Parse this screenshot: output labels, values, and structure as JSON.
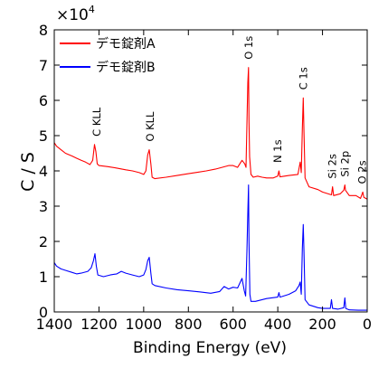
{
  "chart_data": {
    "type": "line",
    "xlabel": "Binding Energy (eV)",
    "ylabel": "C / S",
    "multiplier": {
      "base": "×10",
      "exp": "4"
    },
    "x_reversed": true,
    "xlim": [
      1400,
      0
    ],
    "ylim": [
      0,
      8
    ],
    "x_ticks": [
      1400,
      1200,
      1000,
      800,
      600,
      400,
      200,
      0
    ],
    "y_ticks": [
      0,
      1,
      2,
      3,
      4,
      5,
      6,
      7,
      8
    ],
    "grid": false,
    "legend_position": "top-left",
    "series": [
      {
        "name": "デモ錠剤A",
        "color": "#ff0000",
        "points": [
          [
            1400,
            4.8
          ],
          [
            1390,
            4.7
          ],
          [
            1370,
            4.6
          ],
          [
            1350,
            4.5
          ],
          [
            1320,
            4.42
          ],
          [
            1300,
            4.36
          ],
          [
            1280,
            4.3
          ],
          [
            1260,
            4.25
          ],
          [
            1240,
            4.18
          ],
          [
            1228,
            4.3
          ],
          [
            1220,
            4.75
          ],
          [
            1214,
            4.55
          ],
          [
            1208,
            4.2
          ],
          [
            1200,
            4.15
          ],
          [
            1160,
            4.12
          ],
          [
            1120,
            4.08
          ],
          [
            1080,
            4.03
          ],
          [
            1050,
            4.0
          ],
          [
            1020,
            3.95
          ],
          [
            1000,
            3.9
          ],
          [
            990,
            4.0
          ],
          [
            982,
            4.45
          ],
          [
            975,
            4.6
          ],
          [
            968,
            4.2
          ],
          [
            962,
            3.82
          ],
          [
            950,
            3.78
          ],
          [
            900,
            3.82
          ],
          [
            850,
            3.87
          ],
          [
            800,
            3.92
          ],
          [
            760,
            3.96
          ],
          [
            720,
            4.0
          ],
          [
            680,
            4.05
          ],
          [
            650,
            4.1
          ],
          [
            620,
            4.15
          ],
          [
            600,
            4.15
          ],
          [
            580,
            4.1
          ],
          [
            560,
            4.3
          ],
          [
            548,
            4.2
          ],
          [
            542,
            4.1
          ],
          [
            538,
            5.3
          ],
          [
            534,
            6.5
          ],
          [
            531,
            6.93
          ],
          [
            529,
            5.4
          ],
          [
            526,
            4.4
          ],
          [
            520,
            3.9
          ],
          [
            510,
            3.82
          ],
          [
            490,
            3.85
          ],
          [
            470,
            3.82
          ],
          [
            450,
            3.8
          ],
          [
            420,
            3.8
          ],
          [
            400,
            3.85
          ],
          [
            395,
            4.0
          ],
          [
            390,
            3.83
          ],
          [
            350,
            3.87
          ],
          [
            310,
            3.9
          ],
          [
            300,
            4.25
          ],
          [
            295,
            3.95
          ],
          [
            290,
            5.2
          ],
          [
            286,
            6.07
          ],
          [
            283,
            5.1
          ],
          [
            278,
            3.8
          ],
          [
            260,
            3.55
          ],
          [
            220,
            3.47
          ],
          [
            200,
            3.4
          ],
          [
            160,
            3.32
          ],
          [
            155,
            3.55
          ],
          [
            150,
            3.3
          ],
          [
            120,
            3.35
          ],
          [
            105,
            3.45
          ],
          [
            100,
            3.6
          ],
          [
            97,
            3.45
          ],
          [
            80,
            3.3
          ],
          [
            50,
            3.3
          ],
          [
            30,
            3.22
          ],
          [
            20,
            3.4
          ],
          [
            15,
            3.25
          ],
          [
            0,
            3.2
          ]
        ]
      },
      {
        "name": "デモ錠剤B",
        "color": "#0000ff",
        "points": [
          [
            1400,
            1.4
          ],
          [
            1390,
            1.3
          ],
          [
            1370,
            1.22
          ],
          [
            1350,
            1.18
          ],
          [
            1320,
            1.12
          ],
          [
            1300,
            1.08
          ],
          [
            1280,
            1.1
          ],
          [
            1250,
            1.15
          ],
          [
            1235,
            1.25
          ],
          [
            1225,
            1.45
          ],
          [
            1218,
            1.65
          ],
          [
            1212,
            1.3
          ],
          [
            1205,
            1.05
          ],
          [
            1180,
            1.0
          ],
          [
            1150,
            1.05
          ],
          [
            1120,
            1.08
          ],
          [
            1100,
            1.15
          ],
          [
            1080,
            1.1
          ],
          [
            1050,
            1.05
          ],
          [
            1020,
            1.0
          ],
          [
            1000,
            1.05
          ],
          [
            990,
            1.2
          ],
          [
            982,
            1.45
          ],
          [
            975,
            1.55
          ],
          [
            968,
            1.1
          ],
          [
            962,
            0.8
          ],
          [
            950,
            0.75
          ],
          [
            900,
            0.68
          ],
          [
            850,
            0.63
          ],
          [
            800,
            0.6
          ],
          [
            750,
            0.57
          ],
          [
            700,
            0.53
          ],
          [
            660,
            0.58
          ],
          [
            640,
            0.72
          ],
          [
            620,
            0.65
          ],
          [
            600,
            0.7
          ],
          [
            580,
            0.68
          ],
          [
            560,
            0.95
          ],
          [
            550,
            0.6
          ],
          [
            544,
            0.45
          ],
          [
            538,
            1.7
          ],
          [
            534,
            2.8
          ],
          [
            531,
            3.6
          ],
          [
            529,
            2.0
          ],
          [
            525,
            0.5
          ],
          [
            520,
            0.3
          ],
          [
            500,
            0.3
          ],
          [
            450,
            0.38
          ],
          [
            400,
            0.42
          ],
          [
            395,
            0.55
          ],
          [
            390,
            0.42
          ],
          [
            350,
            0.5
          ],
          [
            320,
            0.6
          ],
          [
            305,
            0.75
          ],
          [
            300,
            0.85
          ],
          [
            295,
            0.5
          ],
          [
            290,
            1.8
          ],
          [
            286,
            2.48
          ],
          [
            283,
            1.7
          ],
          [
            278,
            0.35
          ],
          [
            260,
            0.2
          ],
          [
            220,
            0.12
          ],
          [
            200,
            0.1
          ],
          [
            165,
            0.1
          ],
          [
            160,
            0.35
          ],
          [
            155,
            0.1
          ],
          [
            130,
            0.08
          ],
          [
            105,
            0.12
          ],
          [
            100,
            0.4
          ],
          [
            96,
            0.1
          ],
          [
            80,
            0.06
          ],
          [
            40,
            0.05
          ],
          [
            0,
            0.05
          ]
        ]
      }
    ],
    "annotations": [
      {
        "text": "C KLL",
        "x": 1210,
        "y": 4.75
      },
      {
        "text": "O KLL",
        "x": 972,
        "y": 4.6
      },
      {
        "text": "O 1s",
        "x": 531,
        "y": 6.93
      },
      {
        "text": "N 1s",
        "x": 400,
        "y": 4.0
      },
      {
        "text": "C 1s",
        "x": 286,
        "y": 6.07
      },
      {
        "text": "Si 2s",
        "x": 155,
        "y": 3.55
      },
      {
        "text": "Si 2p",
        "x": 100,
        "y": 3.6
      },
      {
        "text": "O 2s",
        "x": 22,
        "y": 3.4
      }
    ]
  }
}
